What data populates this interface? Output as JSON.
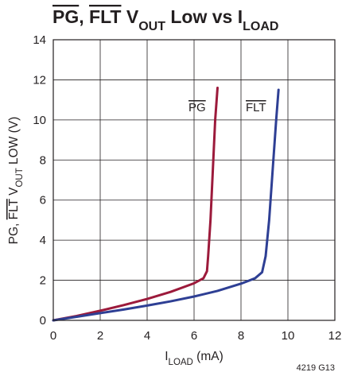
{
  "chart_data": {
    "type": "line",
    "title": {
      "part1": "PG",
      "sep": ", ",
      "part2": "FLT",
      "part3": " V",
      "sub1": "OUT",
      "part4": " Low vs I",
      "sub2": "LOAD"
    },
    "xlabel": {
      "main": "I",
      "sub": "LOAD",
      "rest": " (mA)"
    },
    "ylabel": {
      "part1": "PG, ",
      "part2": "FLT",
      "part3": " V",
      "sub": "OUT",
      "part4": " LOW (V)"
    },
    "xlim": [
      0,
      12
    ],
    "ylim": [
      0,
      14
    ],
    "xticks": [
      0,
      2,
      4,
      6,
      8,
      10,
      12
    ],
    "yticks": [
      0,
      2,
      4,
      6,
      8,
      10,
      12,
      14
    ],
    "grid": true,
    "series": [
      {
        "name": "PG",
        "color": "#9c1a3b",
        "points": [
          [
            0,
            0
          ],
          [
            1,
            0.22
          ],
          [
            2,
            0.48
          ],
          [
            3,
            0.76
          ],
          [
            4,
            1.07
          ],
          [
            5,
            1.42
          ],
          [
            6,
            1.85
          ],
          [
            6.4,
            2.1
          ],
          [
            6.55,
            2.45
          ],
          [
            6.6,
            3.2
          ],
          [
            6.7,
            5.0
          ],
          [
            6.8,
            7.5
          ],
          [
            6.9,
            10.0
          ],
          [
            7.0,
            11.6
          ]
        ]
      },
      {
        "name": "FLT",
        "color": "#2e3f94",
        "points": [
          [
            0,
            0
          ],
          [
            1,
            0.18
          ],
          [
            2,
            0.36
          ],
          [
            3,
            0.54
          ],
          [
            4,
            0.74
          ],
          [
            5,
            0.95
          ],
          [
            6,
            1.19
          ],
          [
            7,
            1.47
          ],
          [
            8,
            1.83
          ],
          [
            8.6,
            2.1
          ],
          [
            8.9,
            2.4
          ],
          [
            9.05,
            3.2
          ],
          [
            9.2,
            5.0
          ],
          [
            9.35,
            7.5
          ],
          [
            9.5,
            10.0
          ],
          [
            9.6,
            11.5
          ]
        ]
      }
    ],
    "annotation": "4219 G13"
  }
}
